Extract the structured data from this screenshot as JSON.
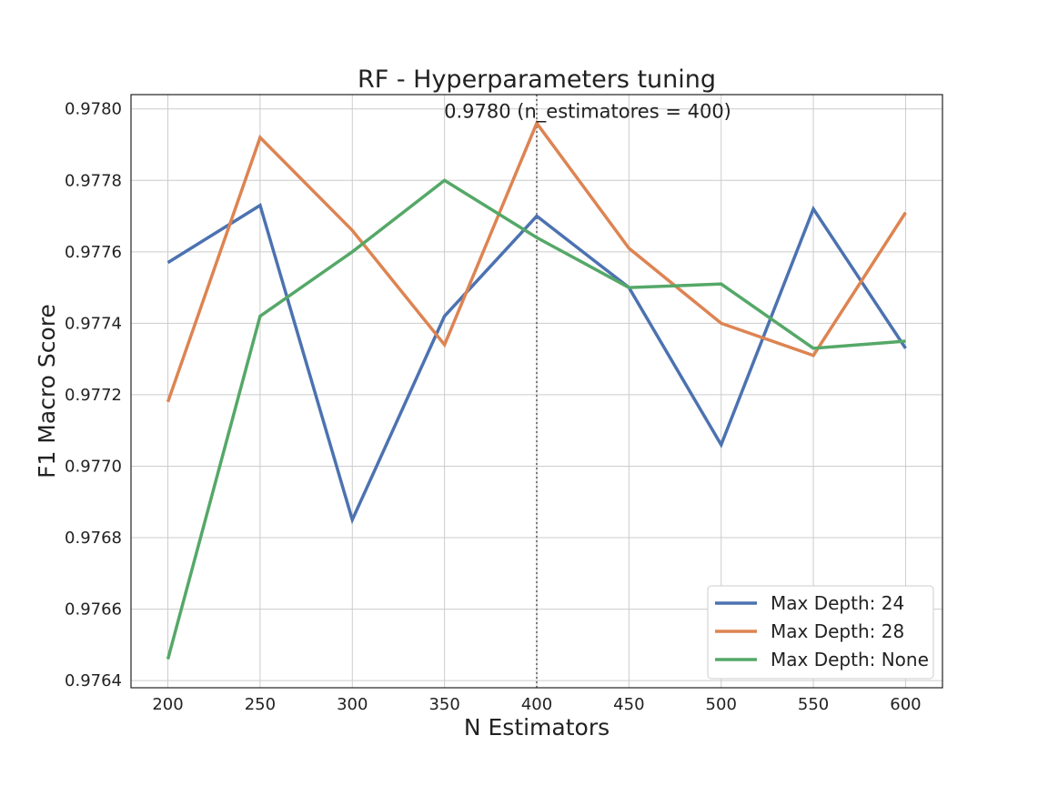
{
  "chart_data": {
    "type": "line",
    "title": "RF - Hyperparameters tuning",
    "xlabel": "N Estimators",
    "ylabel": "F1 Macro Score",
    "x": [
      200,
      250,
      300,
      350,
      400,
      450,
      500,
      550,
      600
    ],
    "x_ticks": [
      "200",
      "250",
      "300",
      "350",
      "400",
      "450",
      "500",
      "550",
      "600"
    ],
    "y_ticks": [
      "0.9764",
      "0.9766",
      "0.9768",
      "0.9770",
      "0.9772",
      "0.9774",
      "0.9776",
      "0.9778",
      "0.9780"
    ],
    "xlim": [
      180,
      620
    ],
    "ylim": [
      0.97638,
      0.97804
    ],
    "grid": true,
    "legend_position": "lower-right",
    "series": [
      {
        "name": "Max Depth: 24",
        "color": "#4c72b0",
        "values": [
          0.97757,
          0.97773,
          0.97685,
          0.97742,
          0.9777,
          0.9775,
          0.97706,
          0.97772,
          0.97733
        ]
      },
      {
        "name": "Max Depth: 28",
        "color": "#dd8452",
        "values": [
          0.97718,
          0.97792,
          0.97766,
          0.97734,
          0.97796,
          0.97761,
          0.9774,
          0.97731,
          0.97771
        ]
      },
      {
        "name": "Max Depth: None",
        "color": "#55a868",
        "values": [
          0.97646,
          0.97742,
          0.9776,
          0.9778,
          0.97764,
          0.9775,
          0.97751,
          0.97733,
          0.97735
        ]
      }
    ],
    "vline": {
      "x": 400,
      "style": "dotted"
    },
    "annotation": {
      "text": "0.9780 (n_estimatores = 400)",
      "x": 400,
      "y": 0.978
    }
  }
}
